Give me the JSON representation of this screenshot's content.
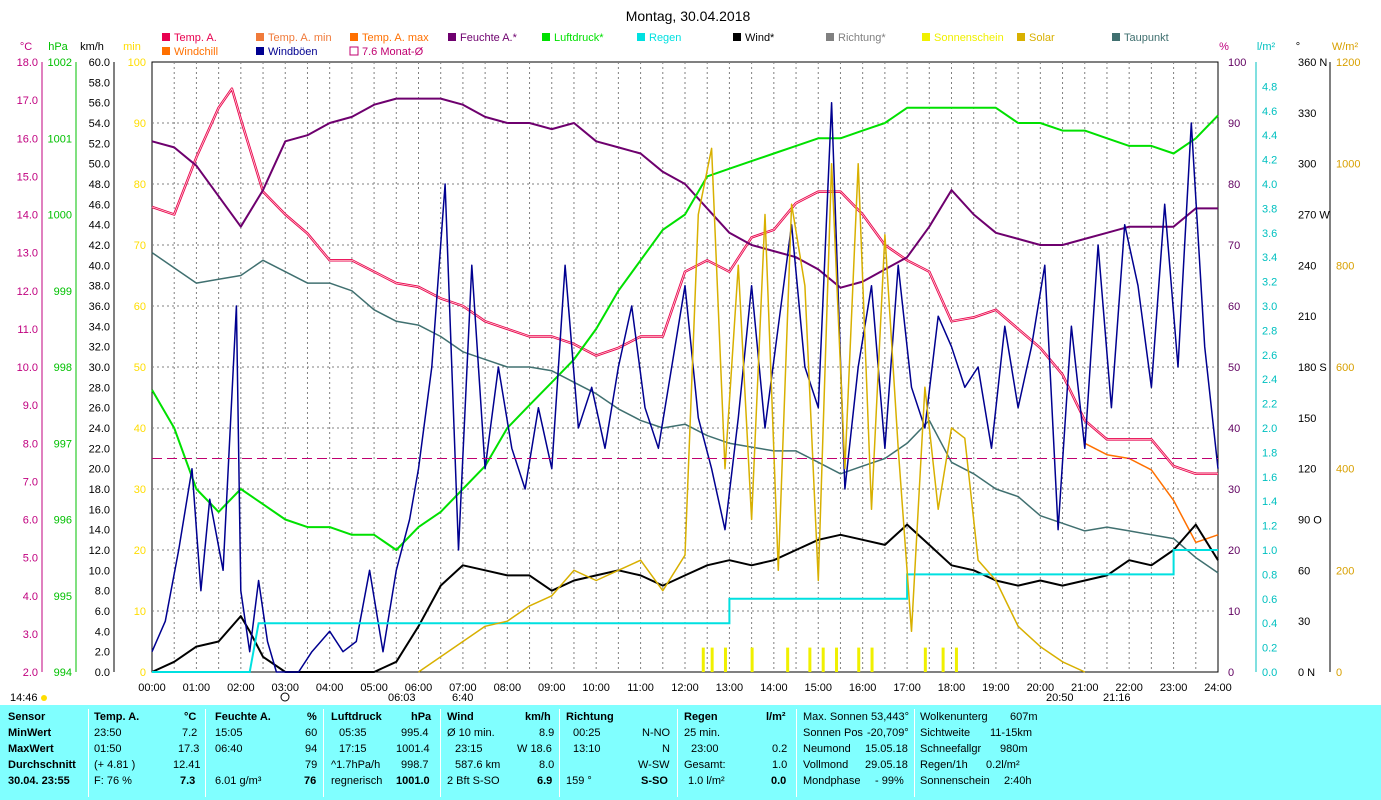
{
  "title": "Montag, 30.04.2018",
  "legend": [
    {
      "label": "Temp. A.",
      "color": "#e8004f"
    },
    {
      "label": "Temp. A. min",
      "color": "#f07a3a"
    },
    {
      "label": "Temp. A. max",
      "color": "#ff7000"
    },
    {
      "label": "Feuchte A.*",
      "color": "#6e006e"
    },
    {
      "label": "Luftdruck*",
      "color": "#00e000"
    },
    {
      "label": "Regen",
      "color": "#00e0e0"
    },
    {
      "label": "Wind*",
      "color": "#000000"
    },
    {
      "label": "Richtung*",
      "color": "#808080"
    },
    {
      "label": "Sonnenschein",
      "color": "#f0f000"
    },
    {
      "label": "Solar",
      "color": "#d8b000"
    },
    {
      "label": "Taupunkt",
      "color": "#407070"
    },
    {
      "label": "Windchill",
      "color": "#ff7000"
    },
    {
      "label": "Windböen",
      "color": "#000090"
    },
    {
      "label": "7.6 Monat-Ø",
      "color": "#c00070"
    }
  ],
  "axis_units": {
    "temp": "°C",
    "hpa": "hPa",
    "kmh": "km/h",
    "min": "min",
    "pct": "%",
    "lm2": "l/m²",
    "deg": "°",
    "wm2": "W/m²"
  },
  "axis_ticks": {
    "temp": [
      "18.0",
      "17.0",
      "16.0",
      "15.0",
      "14.0",
      "13.0",
      "12.0",
      "11.0",
      "10.0",
      "9.0",
      "8.0",
      "7.0",
      "6.0",
      "5.0",
      "4.0",
      "3.0",
      "2.0"
    ],
    "hpa": [
      "1002",
      "1001",
      "1000",
      "999",
      "998",
      "997",
      "996",
      "995",
      "994"
    ],
    "kmh": [
      "60.0",
      "58.0",
      "56.0",
      "54.0",
      "52.0",
      "50.0",
      "48.0",
      "46.0",
      "44.0",
      "42.0",
      "40.0",
      "38.0",
      "36.0",
      "34.0",
      "32.0",
      "30.0",
      "28.0",
      "26.0",
      "24.0",
      "22.0",
      "20.0",
      "18.0",
      "16.0",
      "14.0",
      "12.0",
      "10.0",
      "8.0",
      "6.0",
      "4.0",
      "2.0",
      "0.0"
    ],
    "min": [
      "100",
      "90",
      "80",
      "70",
      "60",
      "50",
      "40",
      "30",
      "20",
      "10",
      "0"
    ],
    "pct": [
      "100",
      "90",
      "80",
      "70",
      "60",
      "50",
      "40",
      "30",
      "20",
      "10",
      "0"
    ],
    "lm2": [
      "4.8",
      "4.6",
      "4.4",
      "4.2",
      "4.0",
      "3.8",
      "3.6",
      "3.4",
      "3.2",
      "3.0",
      "2.8",
      "2.6",
      "2.4",
      "2.2",
      "2.0",
      "1.8",
      "1.6",
      "1.4",
      "1.2",
      "1.0",
      "0.8",
      "0.6",
      "0.4",
      "0.2",
      "0.0"
    ],
    "deg": [
      "360 N",
      "330",
      "300",
      "270 W",
      "240",
      "210",
      "180 S",
      "150",
      "120",
      "90  O",
      "60",
      "30",
      "0   N"
    ],
    "wm2": [
      "1200",
      "1000",
      "800",
      "600",
      "400",
      "200",
      "0"
    ],
    "time": [
      "00:00",
      "01:00",
      "02:00",
      "03:00",
      "04:00",
      "05:00",
      "06:00",
      "07:00",
      "08:00",
      "09:00",
      "10:00",
      "11:00",
      "12:00",
      "13:00",
      "14:00",
      "15:00",
      "16:00",
      "17:00",
      "18:00",
      "19:00",
      "20:00",
      "21:00",
      "22:00",
      "23:00",
      "24:00"
    ]
  },
  "sun_markers": {
    "left": "14:46",
    "sunrise": "06:03",
    "sunrise2": "6:40",
    "sunset": "20:50",
    "sunset2": "21:16"
  },
  "chart_data": {
    "type": "line",
    "title": "Montag, 30.04.2018",
    "x_unit": "hours",
    "xlim": [
      0,
      24
    ],
    "axes": {
      "temp": [
        2,
        18
      ],
      "hpa": [
        994,
        1002
      ],
      "kmh": [
        0,
        60
      ],
      "pct": [
        0,
        100
      ],
      "lm2": [
        0,
        5
      ],
      "deg": [
        0,
        360
      ],
      "wm2": [
        0,
        1200
      ]
    },
    "series": [
      {
        "name": "Temp. A.",
        "axis": "temp",
        "x": [
          0,
          0.5,
          1,
          1.5,
          1.8,
          2,
          2.5,
          3,
          3.5,
          4,
          4.5,
          5,
          5.5,
          6,
          6.5,
          7,
          7.5,
          8,
          8.5,
          9,
          9.5,
          10,
          10.5,
          11,
          11.5,
          12,
          12.5,
          13,
          13.5,
          14,
          14.5,
          15,
          15.5,
          16,
          16.5,
          17,
          17.5,
          18,
          18.5,
          19,
          19.5,
          20,
          20.5,
          21,
          21.5,
          22,
          22.5,
          23,
          23.5,
          24
        ],
        "y": [
          14.2,
          14,
          15.5,
          16.8,
          17.3,
          16.5,
          14.6,
          14,
          13.5,
          12.8,
          12.8,
          12.5,
          12.2,
          12.1,
          11.8,
          11.6,
          11.2,
          11,
          10.8,
          10.8,
          10.6,
          10.3,
          10.5,
          10.8,
          10.8,
          12.5,
          12.8,
          12.5,
          13.4,
          13.6,
          14.3,
          14.6,
          14.6,
          14,
          13.2,
          12.8,
          12.5,
          11.2,
          11.3,
          11.5,
          11,
          10.5,
          9.8,
          8.6,
          8.1,
          8.1,
          8.1,
          7.4,
          7.2,
          7.2
        ]
      },
      {
        "name": "Windchill",
        "axis": "temp",
        "x": [
          21,
          21.5,
          22,
          22.5,
          23,
          23.5,
          24
        ],
        "y": [
          8,
          7.7,
          7.6,
          7.3,
          6.5,
          5.4,
          5.6
        ]
      },
      {
        "name": "Feuchte A.*",
        "axis": "pct",
        "x": [
          0,
          0.5,
          1,
          1.5,
          2,
          2.5,
          3,
          3.5,
          4,
          4.5,
          5,
          5.5,
          6,
          6.5,
          7,
          7.5,
          8,
          8.5,
          9,
          9.5,
          10,
          10.5,
          11,
          11.5,
          12,
          12.5,
          13,
          13.5,
          14,
          14.5,
          15,
          15.5,
          16,
          16.5,
          17,
          17.5,
          18,
          18.5,
          19,
          19.5,
          20,
          20.5,
          21,
          21.5,
          22,
          22.5,
          23,
          23.5,
          24
        ],
        "y": [
          87,
          86,
          83,
          78,
          73,
          79,
          87,
          88,
          90,
          91,
          93,
          94,
          94,
          94,
          93,
          91,
          90,
          90,
          89,
          90,
          87,
          86,
          85,
          82,
          80,
          76,
          72,
          70,
          69,
          68,
          66,
          63,
          64,
          66,
          68,
          73,
          79,
          75,
          72,
          71,
          70,
          70,
          71,
          72,
          73,
          73,
          73,
          76,
          76
        ]
      },
      {
        "name": "Luftdruck*",
        "axis": "hpa",
        "x": [
          0,
          0.5,
          1,
          1.5,
          2,
          2.5,
          3,
          3.5,
          4,
          4.5,
          5,
          5.5,
          6,
          6.5,
          7,
          7.5,
          8,
          8.5,
          9,
          9.5,
          10,
          10.5,
          11,
          11.5,
          12,
          12.5,
          13,
          13.5,
          14,
          14.5,
          15,
          15.5,
          16,
          16.5,
          17,
          17.5,
          18,
          18.5,
          19,
          19.5,
          20,
          20.5,
          21,
          21.5,
          22,
          22.5,
          23,
          23.5,
          24
        ],
        "y": [
          997.7,
          997.2,
          996.4,
          996.1,
          996.4,
          996.2,
          996.0,
          995.9,
          995.9,
          995.8,
          995.8,
          995.6,
          995.9,
          996.1,
          996.4,
          996.7,
          997.2,
          997.5,
          997.8,
          998.1,
          998.5,
          999.0,
          999.4,
          999.8,
          1000.0,
          1000.5,
          1000.6,
          1000.7,
          1000.8,
          1000.9,
          1001.0,
          1001.0,
          1001.1,
          1001.2,
          1001.4,
          1001.4,
          1001.4,
          1001.4,
          1001.4,
          1001.2,
          1001.2,
          1001.1,
          1001.1,
          1001.0,
          1000.9,
          1000.9,
          1000.8,
          1001.0,
          1001.3
        ]
      },
      {
        "name": "Taupunkt",
        "axis": "temp",
        "x": [
          0,
          0.5,
          1,
          1.5,
          2,
          2.5,
          3,
          3.5,
          4,
          4.5,
          5,
          5.5,
          6,
          6.5,
          7,
          7.5,
          8,
          8.5,
          9,
          9.5,
          10,
          10.5,
          11,
          11.5,
          12,
          12.5,
          13,
          13.5,
          14,
          14.5,
          15,
          15.5,
          16,
          16.5,
          17,
          17.5,
          18,
          18.5,
          19,
          19.5,
          20,
          20.5,
          21,
          21.5,
          22,
          22.5,
          23,
          23.5,
          24
        ],
        "y": [
          13,
          12.6,
          12.2,
          12.3,
          12.4,
          12.8,
          12.5,
          12.2,
          12.2,
          12,
          11.5,
          11.2,
          11.1,
          10.8,
          10.4,
          10.2,
          10,
          10,
          9.9,
          9.6,
          9.3,
          8.9,
          8.6,
          8.4,
          8.5,
          8.2,
          8,
          7.9,
          7.8,
          7.8,
          7.5,
          7.2,
          7.4,
          7.6,
          8.0,
          8.6,
          7.5,
          7.2,
          6.8,
          6.6,
          6.1,
          5.9,
          5.7,
          5.8,
          5.7,
          5.6,
          5.5,
          5.0,
          4.6
        ]
      },
      {
        "name": "Wind*",
        "axis": "kmh",
        "x": [
          0,
          0.5,
          1,
          1.5,
          2,
          2.2,
          2.5,
          3,
          3.5,
          4,
          4.5,
          5,
          5.5,
          6,
          6.5,
          7,
          7.5,
          8,
          8.5,
          9,
          9.5,
          10,
          10.5,
          11,
          11.5,
          12,
          12.5,
          13,
          13.5,
          14,
          14.5,
          15,
          15.5,
          16,
          16.5,
          17,
          17.5,
          18,
          18.5,
          19,
          19.5,
          20,
          20.5,
          21,
          21.5,
          22,
          22.5,
          23,
          23.5,
          24
        ],
        "y": [
          0,
          1,
          2.5,
          3,
          5.5,
          4,
          1.5,
          0,
          0,
          0,
          0,
          0,
          1,
          4.5,
          8.5,
          10.5,
          10,
          9.5,
          9.5,
          8,
          9,
          9.5,
          10,
          9.5,
          8.5,
          9.5,
          10.5,
          11,
          10.5,
          11,
          12,
          13,
          13.5,
          13,
          12.5,
          14.5,
          12.5,
          10.5,
          10,
          9,
          8.5,
          9,
          8.5,
          9,
          9.5,
          11,
          10.5,
          12,
          14.5,
          11
        ]
      },
      {
        "name": "Windböen",
        "axis": "kmh",
        "x": [
          0,
          0.3,
          0.6,
          0.9,
          1.1,
          1.3,
          1.6,
          1.9,
          2,
          2.2,
          2.4,
          2.6,
          2.8,
          3,
          3.3,
          3.6,
          4,
          4.3,
          4.6,
          4.9,
          5.2,
          5.5,
          5.8,
          6,
          6.3,
          6.6,
          6.9,
          7.2,
          7.5,
          7.8,
          8.1,
          8.4,
          8.7,
          9,
          9.3,
          9.6,
          9.9,
          10.2,
          10.5,
          10.8,
          11.1,
          11.4,
          11.7,
          12,
          12.3,
          12.6,
          12.9,
          13.2,
          13.5,
          13.8,
          14.1,
          14.4,
          14.7,
          15,
          15.3,
          15.6,
          15.9,
          16.2,
          16.5,
          16.8,
          17.1,
          17.4,
          17.7,
          18,
          18.3,
          18.6,
          18.9,
          19.2,
          19.5,
          19.8,
          20.1,
          20.4,
          20.7,
          21,
          21.3,
          21.6,
          21.9,
          22.2,
          22.5,
          22.8,
          23.1,
          23.4,
          23.7,
          24
        ],
        "y": [
          2,
          5,
          12,
          20,
          8,
          17,
          10,
          36,
          8,
          2,
          9,
          3,
          0,
          0,
          0,
          2,
          4,
          2,
          3,
          10,
          2,
          10,
          15,
          20,
          30,
          48,
          12,
          40,
          20,
          30,
          22,
          18,
          26,
          20,
          40,
          24,
          28,
          22,
          30,
          36,
          26,
          22,
          30,
          38,
          25,
          20,
          14,
          25,
          38,
          24,
          34,
          44,
          30,
          26,
          56,
          18,
          30,
          38,
          22,
          40,
          28,
          24,
          35,
          32,
          28,
          30,
          22,
          34,
          26,
          32,
          40,
          14,
          34,
          22,
          42,
          26,
          44,
          38,
          28,
          46,
          30,
          54,
          32,
          20
        ]
      },
      {
        "name": "Regen",
        "axis": "lm2",
        "x": [
          0,
          2.2,
          2.4,
          13,
          13,
          17,
          17,
          23,
          23,
          24
        ],
        "y": [
          0,
          0,
          0.4,
          0.4,
          0.6,
          0.6,
          0.8,
          0.8,
          1.0,
          1.0
        ]
      },
      {
        "name": "Solar",
        "axis": "wm2",
        "x": [
          6,
          6.5,
          7,
          7.5,
          8,
          8.5,
          9,
          9.5,
          10,
          10.5,
          11,
          11.5,
          12,
          12.3,
          12.6,
          12.9,
          13.2,
          13.5,
          13.8,
          14.1,
          14.4,
          14.7,
          15,
          15.3,
          15.6,
          15.9,
          16.2,
          16.5,
          16.8,
          17.1,
          17.4,
          17.7,
          18,
          18.3,
          18.6,
          19,
          19.5,
          20,
          20.5,
          21
        ],
        "y": [
          0,
          30,
          60,
          90,
          100,
          130,
          150,
          200,
          180,
          200,
          220,
          160,
          230,
          900,
          1030,
          400,
          800,
          300,
          900,
          200,
          920,
          760,
          180,
          1000,
          400,
          1000,
          320,
          860,
          440,
          80,
          560,
          320,
          480,
          460,
          220,
          180,
          90,
          50,
          20,
          0
        ]
      },
      {
        "name": "Sonnenschein",
        "axis": "pct",
        "x": [
          12.4,
          12.6,
          12.9,
          13.5,
          14.3,
          14.8,
          15.1,
          15.4,
          15.9,
          16.2,
          17.4,
          17.8,
          18.1
        ],
        "y": [
          4,
          4,
          4,
          4,
          4,
          4,
          4,
          4,
          4,
          4,
          4,
          4,
          4
        ]
      },
      {
        "name": "7.6 Monat-Ø",
        "axis": "temp",
        "x": [
          0,
          24
        ],
        "y": [
          7.6,
          7.6
        ]
      }
    ]
  },
  "table": {
    "sensor": {
      "header": "Sensor",
      "min": "MinWert",
      "max": "MaxWert",
      "avg": "Durchschnitt",
      "date": "30.04. 23:55"
    },
    "temp": {
      "header": "Temp. A.",
      "unit": "°C",
      "min_t": "23:50",
      "min_v": "7.2",
      "max_t": "01:50",
      "max_v": "17.3",
      "avg_t": "(+ 4.81 )",
      "avg_v": "12.41",
      "f_label": "F: 76 %",
      "f_val": "7.3"
    },
    "hum": {
      "header": "Feuchte A.",
      "unit": "%",
      "min_t": "15:05",
      "min_v": "60",
      "max_t": "06:40",
      "max_v": "94",
      "avg_v": "79",
      "abs": "6.01 g/m³",
      "abs_v": "76"
    },
    "press": {
      "header": "Luftdruck",
      "unit": "hPa",
      "min_t": "05:35",
      "min_v": "995.4",
      "max_t": "17:15",
      "max_v": "1001.4",
      "trend": "^1.7hPa/h",
      "trend_v": "998.7",
      "cond": "regnerisch",
      "cond_v": "1001.0"
    },
    "wind": {
      "header": "Wind",
      "unit": "km/h",
      "r1a": "Ø 10 min.",
      "r1b": "8.9",
      "r2a": "23:15",
      "r2b": "W 18.6",
      "r3a": "587.6 km",
      "r3b": "8.0",
      "r4a": "2 Bft S-SO",
      "r4b": "6.9"
    },
    "dir": {
      "header": "Richtung",
      "r1a": "00:25",
      "r1b": "N-NO",
      "r2a": "13:10",
      "r2b": "N",
      "r3b": "W-SW",
      "r4a": "159 °",
      "r4b": "S-SO"
    },
    "rain": {
      "header": "Regen",
      "unit": "l/m²",
      "r1a": "25 min.",
      "r2a": "23:00",
      "r2b": "0.2",
      "r3a": "Gesamt:",
      "r3b": "1.0",
      "r4a": "1.0 l/m²",
      "r4b": "0.0"
    },
    "sun": {
      "r1a": "Max. Sonnen",
      "r1b": "53,443°",
      "r2a": "Sonnen Pos",
      "r2b": "-20,709°",
      "r3a": "Neumond",
      "r3b": "15.05.18",
      "r4a": "Vollmond",
      "r4b": "29.05.18",
      "r5a": "Mondphase",
      "r5b": "- 99%"
    },
    "misc": {
      "r1a": "Wolkenunterg",
      "r1b": "607m",
      "r2a": "Sichtweite",
      "r2b": "11-15km",
      "r3a": "Schneefallgr",
      "r3b": "980m",
      "r4a": "Regen/1h",
      "r4b": "0.2l/m²",
      "r5a": "Sonnenschein",
      "r5b": "2:40h"
    }
  }
}
